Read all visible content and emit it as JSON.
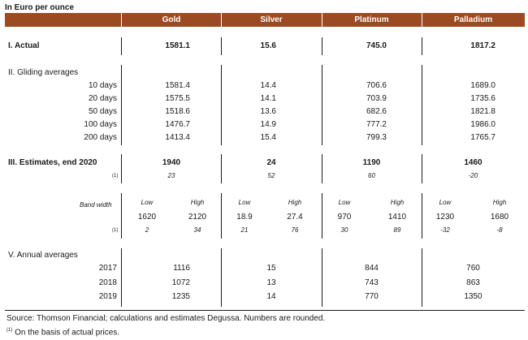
{
  "unit_label": "In Euro per ounce",
  "columns": [
    "Gold",
    "Silver",
    "Platinum",
    "Palladium"
  ],
  "actual": {
    "label": "I. Actual",
    "values": [
      "1581.1",
      "15.6",
      "745.0",
      "1817.2"
    ]
  },
  "gliding": {
    "label": "II. Gliding averages",
    "rows": [
      {
        "label": "10 days",
        "values": [
          "1581.4",
          "14.4",
          "706.6",
          "1689.0"
        ]
      },
      {
        "label": "20 days",
        "values": [
          "1575.5",
          "14.1",
          "703.9",
          "1735.6"
        ]
      },
      {
        "label": "50 days",
        "values": [
          "1518.6",
          "13.6",
          "682.6",
          "1821.8"
        ]
      },
      {
        "label": "100 days",
        "values": [
          "1476.7",
          "14.9",
          "777.2",
          "1986.0"
        ]
      },
      {
        "label": "200 days",
        "values": [
          "1413.4",
          "15.4",
          "799.3",
          "1765.7"
        ]
      }
    ]
  },
  "estimates": {
    "label": "III. Estimates, end 2020",
    "values": [
      "1940",
      "24",
      "1190",
      "1460"
    ],
    "note_marker": "(1)",
    "pct": [
      "23",
      "52",
      "60",
      "-20"
    ]
  },
  "band": {
    "label": "Band width",
    "low_label": "Low",
    "high_label": "High",
    "note_marker": "(1)",
    "low": [
      "1620",
      "18.9",
      "970",
      "1230"
    ],
    "high": [
      "2120",
      "27.4",
      "1410",
      "1680"
    ],
    "low_pct": [
      "2",
      "21",
      "30",
      "-32"
    ],
    "high_pct": [
      "34",
      "76",
      "89",
      "-8"
    ]
  },
  "annual": {
    "label": "V. Annual averages",
    "rows": [
      {
        "year": "2017",
        "values": [
          "1116",
          "15",
          "844",
          "760"
        ]
      },
      {
        "year": "2018",
        "values": [
          "1072",
          "13",
          "743",
          "863"
        ]
      },
      {
        "year": "2019",
        "values": [
          "1235",
          "14",
          "770",
          "1350"
        ]
      }
    ]
  },
  "source": "Source: Thomson Financial; calculations and estimates Degussa. Numbers are rounded.",
  "footnote": {
    "marker": "(1)",
    "text": " On the basis of actual prices."
  }
}
